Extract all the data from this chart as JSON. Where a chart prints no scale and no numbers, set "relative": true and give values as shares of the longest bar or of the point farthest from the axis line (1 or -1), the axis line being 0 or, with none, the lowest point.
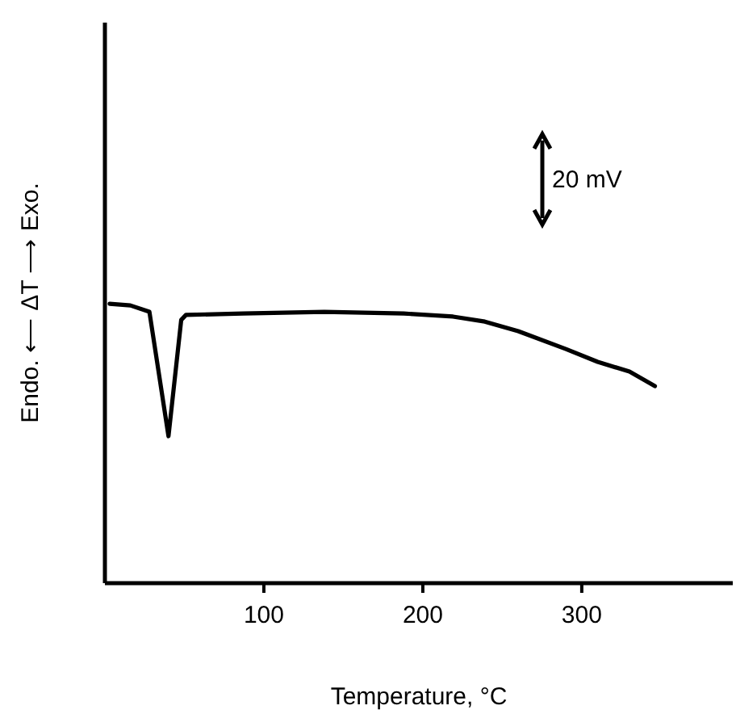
{
  "chart_data": {
    "type": "line",
    "relative": true,
    "xlabel": "Temperature, °C",
    "ylabel": "Endo. ⟵ ΔT ⟶ Exo.",
    "annotations": [
      "20 mV"
    ],
    "xlim": [
      0,
      395
    ],
    "xticks": [
      100,
      200,
      300
    ],
    "series": [
      {
        "color": "#000000",
        "x": [
          3,
          16,
          28,
          40,
          48,
          51,
          87,
          138,
          188,
          219,
          239,
          260,
          290,
          310,
          330,
          346
        ],
        "values": [
          1.0,
          0.994,
          0.971,
          0.526,
          0.942,
          0.96,
          0.965,
          0.971,
          0.965,
          0.954,
          0.936,
          0.902,
          0.838,
          0.792,
          0.757,
          0.705
        ]
      }
    ]
  }
}
